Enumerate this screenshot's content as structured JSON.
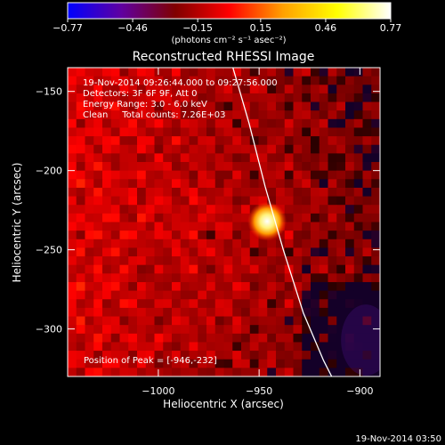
{
  "chart_data": {
    "type": "heatmap",
    "title": "Reconstructed RHESSI Image",
    "xlabel": "Heliocentric X (arcsec)",
    "ylabel": "Heliocentric Y (arcsec)",
    "xlim": [
      -1045,
      -890
    ],
    "ylim": [
      -330,
      -135
    ],
    "x_ticks": [
      -1000,
      -950,
      -900
    ],
    "y_ticks": [
      -150,
      -200,
      -250,
      -300
    ],
    "x_tick_labels": [
      "−1000",
      "−950",
      "−900"
    ],
    "y_tick_labels": [
      "−150",
      "−200",
      "−250",
      "−300"
    ],
    "colorbar": {
      "range": [
        -0.77,
        0.77
      ],
      "tick_values": [
        -0.77,
        -0.46,
        -0.15,
        0.15,
        0.46,
        0.77
      ],
      "tick_labels": [
        "−0.77",
        "−0.46",
        "−0.15",
        "0.15",
        "0.46",
        "0.77"
      ],
      "unit_label": "(photons cm⁻² s⁻¹ asec⁻²)",
      "colormap": [
        "#0000ff",
        "#6000a0",
        "#800000",
        "#ff0000",
        "#ffa000",
        "#ffff00",
        "#ffffff"
      ]
    },
    "header_lines": [
      "19-Nov-2014 09:26:44.000 to 09:27:56.000",
      "Detectors: 3F 6F 9F, Att 0",
      "Energy Range: 3.0 - 6.0 keV",
      "Clean     Total counts: 7.26E+03"
    ],
    "peak": {
      "x": -946,
      "y": -232,
      "value": 0.77
    },
    "peak_label": "Position of Peak = [-946,-232]",
    "limb_curve": [
      [
        -963,
        -135
      ],
      [
        -955,
        -170
      ],
      [
        -947,
        -210
      ],
      [
        -938,
        -250
      ],
      [
        -928,
        -290
      ],
      [
        -918,
        -320
      ],
      [
        -914,
        -330
      ]
    ],
    "footer_timestamp": "19-Nov-2014 03:50"
  }
}
